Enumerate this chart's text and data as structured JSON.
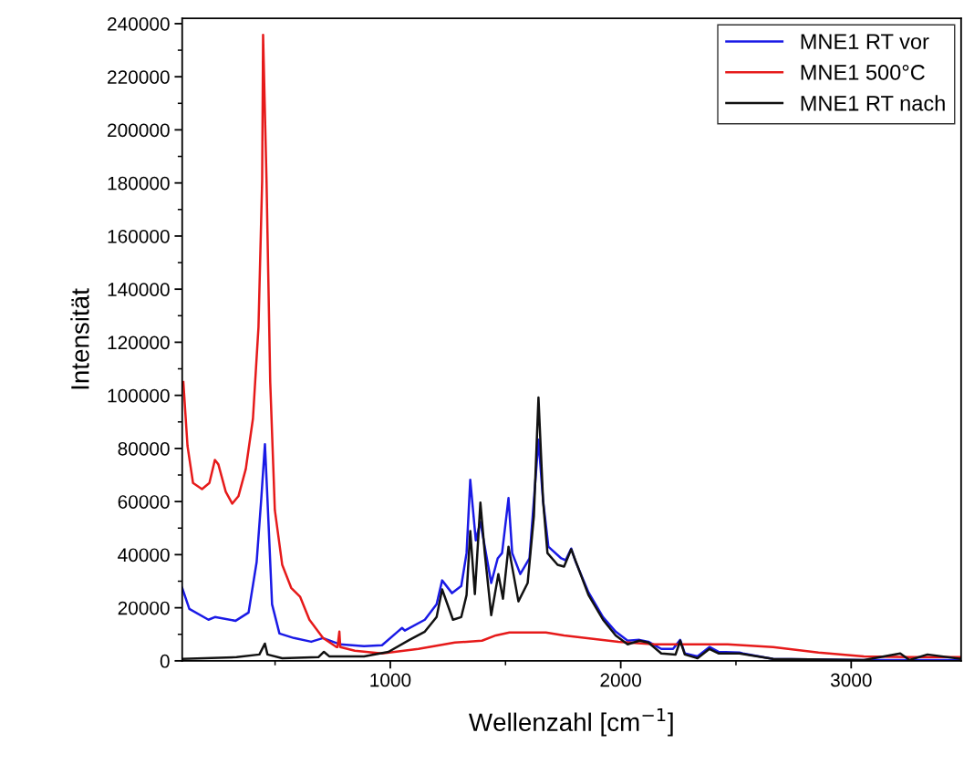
{
  "chart_data": {
    "type": "line",
    "xlabel": "Wellenzahl [cm$^{−1}$]",
    "ylabel": "Intensität",
    "xlim": [
      97,
      3477
    ],
    "ylim": [
      0,
      242000
    ],
    "xticks": [
      {
        "value": 500,
        "label": null
      },
      1000,
      {
        "value": 1500,
        "label": null
      },
      2000,
      {
        "value": 2500,
        "label": null
      },
      3000
    ],
    "yticks": [
      0,
      {
        "value": 10000,
        "label": null
      },
      20000,
      {
        "value": 30000,
        "label": null
      },
      40000,
      {
        "value": 50000,
        "label": null
      },
      60000,
      {
        "value": 70000,
        "label": null
      },
      80000,
      {
        "value": 90000,
        "label": null
      },
      100000,
      {
        "value": 110000,
        "label": null
      },
      120000,
      {
        "value": 130000,
        "label": null
      },
      140000,
      {
        "value": 150000,
        "label": null
      },
      160000,
      {
        "value": 170000,
        "label": null
      },
      180000,
      {
        "value": 190000,
        "label": null
      },
      200000,
      {
        "value": 210000,
        "label": null
      },
      220000,
      {
        "value": 230000,
        "label": null
      },
      240000
    ],
    "grid": false,
    "legend": "top right",
    "line_style": "solid",
    "marker": "none",
    "series": [
      {
        "name": "MNE1 RT vor",
        "color": "#1a1ae6",
        "x": [
          97,
          128,
          211,
          239,
          329,
          385,
          420,
          440,
          456,
          467,
          487,
          519,
          582,
          657,
          708,
          783,
          886,
          964,
          1032,
          1051,
          1063,
          1150,
          1201,
          1225,
          1268,
          1308,
          1331,
          1347,
          1371,
          1391,
          1438,
          1466,
          1485,
          1513,
          1529,
          1564,
          1604,
          1623,
          1643,
          1663,
          1686,
          1742,
          1761,
          1785,
          1805,
          1860,
          1923,
          1978,
          2030,
          2081,
          2120,
          2176,
          2227,
          2258,
          2278,
          2333,
          2385,
          2424,
          2515,
          2530,
          2661,
          3055,
          3477
        ],
        "values": [
          27500,
          19600,
          15500,
          16500,
          15100,
          18200,
          37200,
          60900,
          81600,
          60900,
          21300,
          10300,
          8600,
          7200,
          8600,
          6200,
          5500,
          5900,
          11000,
          12400,
          11400,
          15500,
          21300,
          30300,
          25500,
          28200,
          40600,
          68200,
          45400,
          52300,
          29300,
          38600,
          40600,
          61300,
          40600,
          32700,
          38600,
          60300,
          83300,
          60300,
          43000,
          38600,
          37900,
          42300,
          37200,
          25800,
          16500,
          11000,
          7600,
          7900,
          7200,
          4500,
          4500,
          7900,
          2800,
          1700,
          5200,
          3400,
          3100,
          2800,
          700,
          300,
          300
        ]
      },
      {
        "name": "MNE1 500°C",
        "color": "#e61a1a",
        "x": [
          102,
          120,
          144,
          183,
          215,
          239,
          254,
          286,
          314,
          341,
          373,
          404,
          428,
          444,
          448,
          463,
          479,
          499,
          531,
          570,
          609,
          649,
          708,
          767,
          771,
          779,
          783,
          846,
          964,
          1122,
          1280,
          1398,
          1458,
          1517,
          1675,
          1754,
          1990,
          2148,
          2464,
          2661,
          2858,
          3055,
          3253,
          3477
        ],
        "values": [
          105000,
          81000,
          67000,
          64700,
          67000,
          75700,
          74000,
          63700,
          59200,
          62000,
          72300,
          91200,
          125700,
          180800,
          235800,
          180800,
          105000,
          56800,
          36200,
          27500,
          24100,
          15500,
          8600,
          5200,
          5200,
          11000,
          5200,
          3800,
          2800,
          4500,
          6900,
          7600,
          9600,
          10700,
          10700,
          9600,
          7200,
          6200,
          6200,
          5200,
          3100,
          1700,
          1400,
          1400
        ]
      },
      {
        "name": "MNE1 RT nach",
        "color": "#111111",
        "x": [
          97,
          333,
          432,
          456,
          467,
          531,
          688,
          712,
          735,
          886,
          992,
          1083,
          1150,
          1201,
          1225,
          1272,
          1308,
          1331,
          1347,
          1367,
          1391,
          1410,
          1438,
          1469,
          1489,
          1513,
          1556,
          1596,
          1623,
          1643,
          1663,
          1682,
          1726,
          1754,
          1785,
          1860,
          1923,
          1978,
          2030,
          2081,
          2120,
          2176,
          2238,
          2258,
          2278,
          2333,
          2385,
          2424,
          2515,
          2661,
          3055,
          3213,
          3253,
          3331,
          3477
        ],
        "values": [
          700,
          1400,
          2400,
          6500,
          2400,
          1000,
          1400,
          3400,
          1700,
          1700,
          3400,
          7900,
          11000,
          16500,
          26900,
          15500,
          16500,
          24800,
          48900,
          25100,
          59600,
          40600,
          17200,
          32700,
          23400,
          43000,
          22400,
          29300,
          54400,
          99200,
          60300,
          40600,
          36200,
          35500,
          42000,
          24800,
          15500,
          9600,
          6200,
          7600,
          6900,
          2800,
          2400,
          7600,
          2400,
          1000,
          4500,
          2800,
          2800,
          700,
          300,
          2800,
          300,
          2400,
          700
        ]
      }
    ]
  }
}
